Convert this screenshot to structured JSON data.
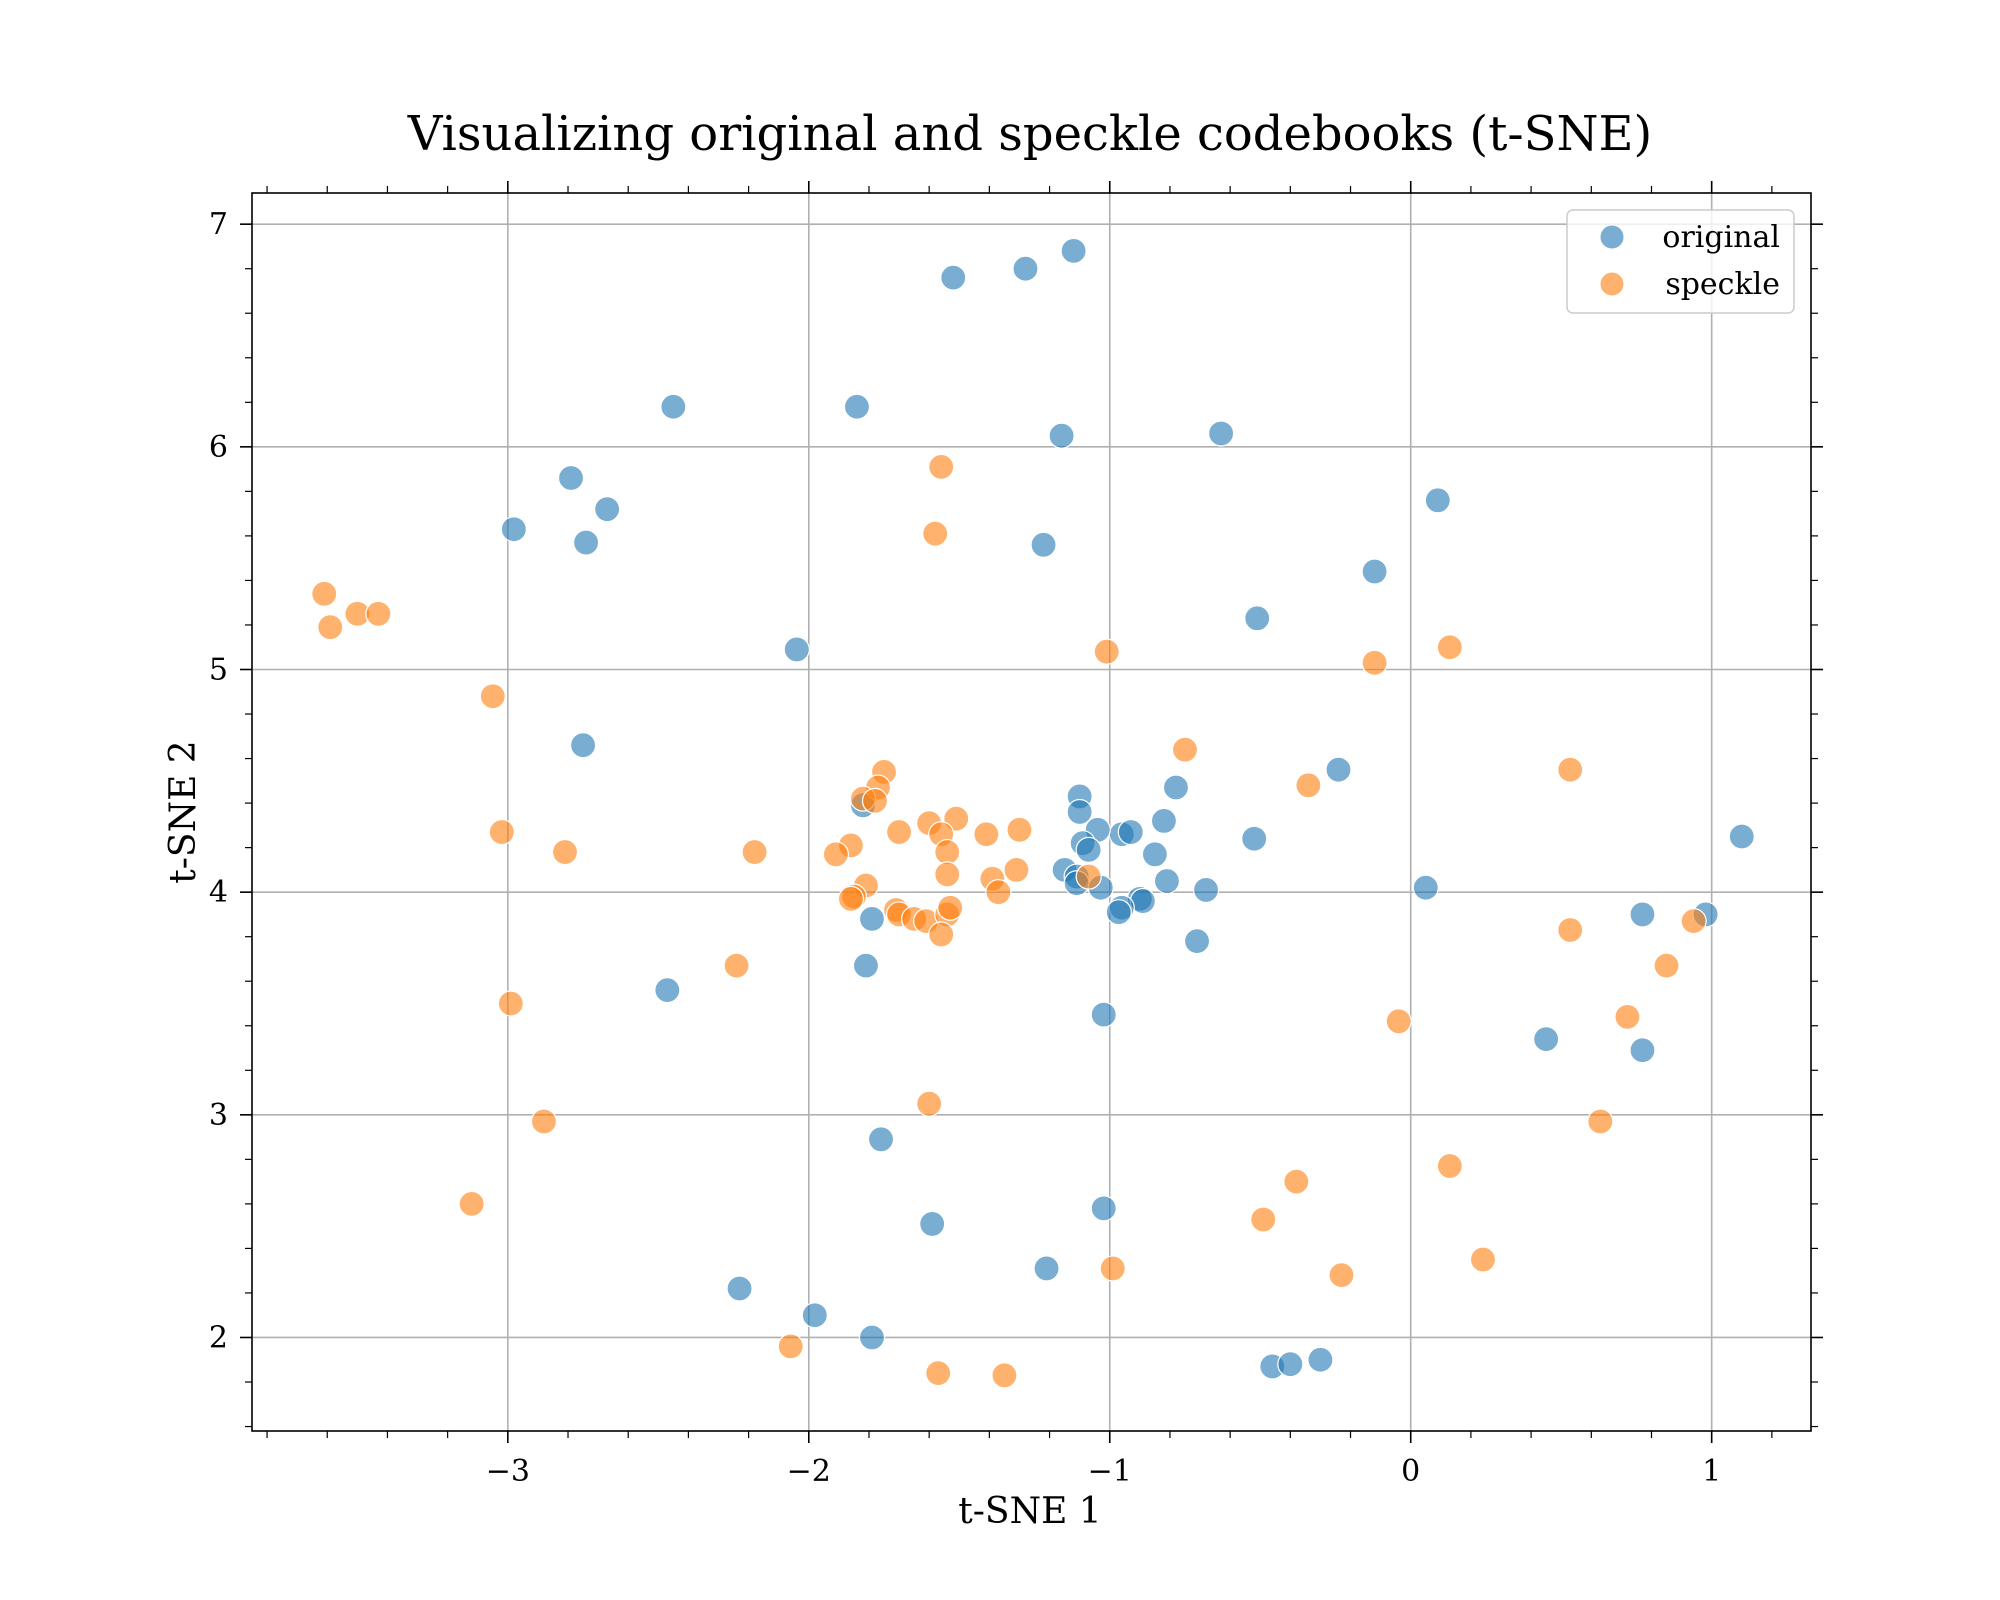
{
  "chart_data": {
    "type": "scatter",
    "title": "Visualizing original and speckle codebooks (t-SNE)",
    "xlabel": "t-SNE 1",
    "ylabel": "t-SNE 2",
    "xlim": [
      -3.85,
      1.33
    ],
    "ylim": [
      1.58,
      7.14
    ],
    "xticks": [
      -3,
      -2,
      -1,
      0,
      1
    ],
    "xtick_labels": [
      "−3",
      "−2",
      "−1",
      "0",
      "1"
    ],
    "yticks": [
      2,
      3,
      4,
      5,
      6,
      7
    ],
    "ytick_labels": [
      "2",
      "3",
      "4",
      "5",
      "6",
      "7"
    ],
    "grid": true,
    "legend_position": "top-right",
    "series": [
      {
        "name": "original",
        "color": "#1f77b4",
        "points": [
          [
            -1.52,
            6.76
          ],
          [
            -1.28,
            6.8
          ],
          [
            -1.12,
            6.88
          ],
          [
            -1.84,
            6.18
          ],
          [
            -2.45,
            6.18
          ],
          [
            -1.16,
            6.05
          ],
          [
            -0.63,
            6.06
          ],
          [
            -2.79,
            5.86
          ],
          [
            -2.67,
            5.72
          ],
          [
            -2.98,
            5.63
          ],
          [
            -2.74,
            5.57
          ],
          [
            -1.22,
            5.56
          ],
          [
            0.09,
            5.76
          ],
          [
            -0.12,
            5.44
          ],
          [
            -0.51,
            5.23
          ],
          [
            -2.04,
            5.09
          ],
          [
            -2.75,
            4.66
          ],
          [
            -0.24,
            4.55
          ],
          [
            -0.78,
            4.47
          ],
          [
            -1.1,
            4.43
          ],
          [
            -1.1,
            4.36
          ],
          [
            -0.82,
            4.32
          ],
          [
            -0.96,
            4.26
          ],
          [
            -0.93,
            4.27
          ],
          [
            -1.04,
            4.28
          ],
          [
            -0.52,
            4.24
          ],
          [
            1.1,
            4.25
          ],
          [
            -1.09,
            4.22
          ],
          [
            -1.07,
            4.19
          ],
          [
            -0.85,
            4.17
          ],
          [
            -1.15,
            4.1
          ],
          [
            -1.11,
            4.07
          ],
          [
            -1.11,
            4.04
          ],
          [
            -0.81,
            4.05
          ],
          [
            -1.03,
            4.02
          ],
          [
            -0.68,
            4.01
          ],
          [
            0.05,
            4.02
          ],
          [
            -0.9,
            3.97
          ],
          [
            -0.89,
            3.96
          ],
          [
            -0.96,
            3.93
          ],
          [
            -0.97,
            3.91
          ],
          [
            -1.82,
            4.39
          ],
          [
            -1.79,
            3.88
          ],
          [
            0.77,
            3.9
          ],
          [
            0.98,
            3.9
          ],
          [
            -0.71,
            3.78
          ],
          [
            -1.81,
            3.67
          ],
          [
            -2.47,
            3.56
          ],
          [
            -1.02,
            3.45
          ],
          [
            0.45,
            3.34
          ],
          [
            0.77,
            3.29
          ],
          [
            -1.76,
            2.89
          ],
          [
            -1.02,
            2.58
          ],
          [
            -1.59,
            2.51
          ],
          [
            -1.21,
            2.31
          ],
          [
            -2.23,
            2.22
          ],
          [
            -1.98,
            2.1
          ],
          [
            -1.79,
            2.0
          ],
          [
            -0.46,
            1.87
          ],
          [
            -0.4,
            1.88
          ],
          [
            -0.3,
            1.9
          ]
        ]
      },
      {
        "name": "speckle",
        "color": "#ff7f0e",
        "points": [
          [
            -1.56,
            5.91
          ],
          [
            -1.58,
            5.61
          ],
          [
            -3.61,
            5.34
          ],
          [
            -3.5,
            5.25
          ],
          [
            -3.43,
            5.25
          ],
          [
            -3.59,
            5.19
          ],
          [
            -3.05,
            4.88
          ],
          [
            -1.01,
            5.08
          ],
          [
            -0.12,
            5.03
          ],
          [
            0.13,
            5.1
          ],
          [
            -0.75,
            4.64
          ],
          [
            -0.34,
            4.48
          ],
          [
            0.53,
            4.55
          ],
          [
            -1.75,
            4.54
          ],
          [
            -1.77,
            4.47
          ],
          [
            -1.82,
            4.42
          ],
          [
            -1.78,
            4.41
          ],
          [
            -1.6,
            4.31
          ],
          [
            -1.51,
            4.33
          ],
          [
            -1.56,
            4.26
          ],
          [
            -1.7,
            4.27
          ],
          [
            -1.41,
            4.26
          ],
          [
            -1.3,
            4.28
          ],
          [
            -3.02,
            4.27
          ],
          [
            -2.81,
            4.18
          ],
          [
            -2.18,
            4.18
          ],
          [
            -1.86,
            4.21
          ],
          [
            -1.91,
            4.17
          ],
          [
            -1.54,
            4.18
          ],
          [
            -1.31,
            4.1
          ],
          [
            -1.54,
            4.08
          ],
          [
            -1.39,
            4.06
          ],
          [
            -1.07,
            4.07
          ],
          [
            -1.37,
            4.0
          ],
          [
            -1.81,
            4.03
          ],
          [
            -1.85,
            3.98
          ],
          [
            -1.86,
            3.97
          ],
          [
            -1.71,
            3.92
          ],
          [
            -1.7,
            3.9
          ],
          [
            -1.65,
            3.88
          ],
          [
            -1.61,
            3.87
          ],
          [
            -1.54,
            3.9
          ],
          [
            -1.53,
            3.93
          ],
          [
            -1.56,
            3.81
          ],
          [
            0.53,
            3.83
          ],
          [
            0.85,
            3.67
          ],
          [
            0.94,
            3.87
          ],
          [
            -2.24,
            3.67
          ],
          [
            -2.99,
            3.5
          ],
          [
            0.72,
            3.44
          ],
          [
            -0.04,
            3.42
          ],
          [
            -1.6,
            3.05
          ],
          [
            -2.88,
            2.97
          ],
          [
            0.63,
            2.97
          ],
          [
            0.13,
            2.77
          ],
          [
            -0.38,
            2.7
          ],
          [
            -3.12,
            2.6
          ],
          [
            -0.49,
            2.53
          ],
          [
            -0.99,
            2.31
          ],
          [
            -0.23,
            2.28
          ],
          [
            0.24,
            2.35
          ],
          [
            -2.06,
            1.96
          ],
          [
            -1.57,
            1.84
          ],
          [
            -1.35,
            1.83
          ]
        ]
      }
    ]
  },
  "legend": {
    "items": [
      {
        "label": "original",
        "color": "#1f77b4"
      },
      {
        "label": "speckle",
        "color": "#ff7f0e"
      }
    ]
  }
}
